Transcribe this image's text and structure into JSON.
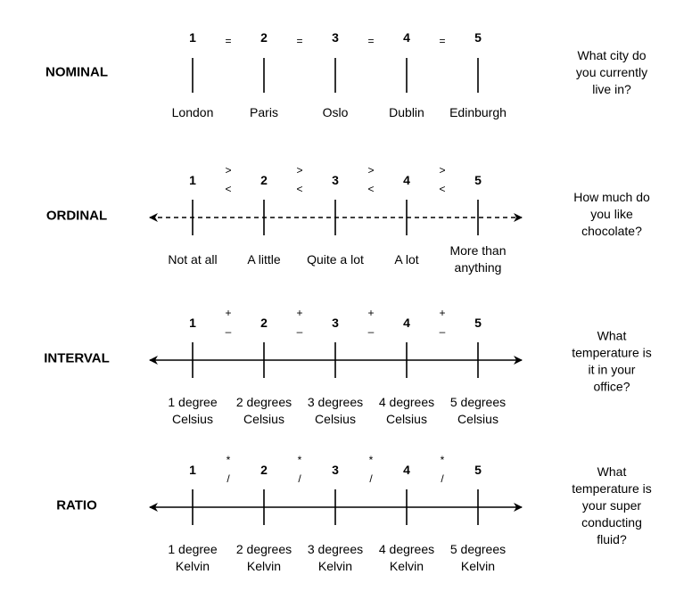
{
  "scales": [
    {
      "title": "NOMINAL",
      "numbers": [
        "1",
        "2",
        "3",
        "4",
        "5"
      ],
      "operators": [
        [
          "="
        ],
        [
          "="
        ],
        [
          "="
        ],
        [
          "="
        ]
      ],
      "axis": "none",
      "labels": [
        [
          "London"
        ],
        [
          "Paris"
        ],
        [
          "Oslo"
        ],
        [
          "Dublin"
        ],
        [
          "Edinburgh"
        ]
      ],
      "question": [
        "What city do",
        "you currently",
        "live in?"
      ]
    },
    {
      "title": "ORDINAL",
      "numbers": [
        "1",
        "2",
        "3",
        "4",
        "5"
      ],
      "operators": [
        [
          ">",
          "<"
        ],
        [
          ">",
          "<"
        ],
        [
          ">",
          "<"
        ],
        [
          ">",
          "<"
        ]
      ],
      "axis": "dashed",
      "labels": [
        [
          "Not at all"
        ],
        [
          "A little"
        ],
        [
          "Quite a lot"
        ],
        [
          "A lot"
        ],
        [
          "More than",
          "anything"
        ]
      ],
      "question": [
        "How much do",
        "you like",
        "chocolate?"
      ]
    },
    {
      "title": "INTERVAL",
      "numbers": [
        "1",
        "2",
        "3",
        "4",
        "5"
      ],
      "operators": [
        [
          "+",
          "–"
        ],
        [
          "+",
          "–"
        ],
        [
          "+",
          "–"
        ],
        [
          "+",
          "–"
        ]
      ],
      "axis": "solid",
      "labels": [
        [
          "1 degree",
          "Celsius"
        ],
        [
          "2 degrees",
          "Celsius"
        ],
        [
          "3 degrees",
          "Celsius"
        ],
        [
          "4 degrees",
          "Celsius"
        ],
        [
          "5 degrees",
          "Celsius"
        ]
      ],
      "question": [
        "What",
        "temperature is",
        "it in your",
        "office?"
      ]
    },
    {
      "title": "RATIO",
      "numbers": [
        "1",
        "2",
        "3",
        "4",
        "5"
      ],
      "operators": [
        [
          "*",
          "/"
        ],
        [
          "*",
          "/"
        ],
        [
          "*",
          "/"
        ],
        [
          "*",
          "/"
        ]
      ],
      "axis": "solid",
      "labels": [
        [
          "1 degree",
          "Kelvin"
        ],
        [
          "2 degrees",
          "Kelvin"
        ],
        [
          "3 degrees",
          "Kelvin"
        ],
        [
          "4 degrees",
          "Kelvin"
        ],
        [
          "5 degrees",
          "Kelvin"
        ]
      ],
      "question": [
        "What",
        "temperature is",
        "your super",
        "conducting",
        "fluid?"
      ]
    }
  ]
}
